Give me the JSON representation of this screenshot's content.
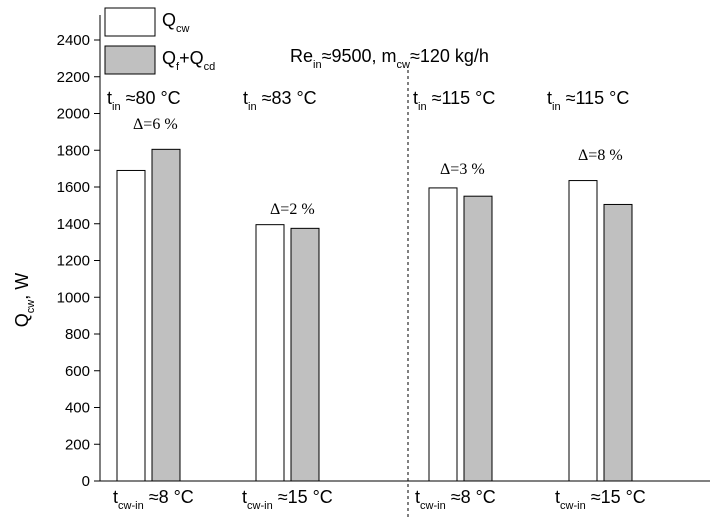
{
  "chart_data": {
    "type": "bar",
    "annotation": [
      "Re",
      "in",
      "≈9500, m",
      "cw",
      "≈120 kg/h"
    ],
    "y_label": [
      "Q",
      "cw",
      ", W"
    ],
    "categories": [
      [
        "t",
        "cw-in",
        " ≈8 °C"
      ],
      [
        "t",
        "cw-in",
        " ≈15 °C"
      ],
      [
        "t",
        "cw-in",
        " ≈8 °C"
      ],
      [
        "t",
        "cw-in",
        " ≈15 °C"
      ]
    ],
    "top_labels": [
      [
        "t",
        "in",
        " ≈80 °C"
      ],
      [
        "t",
        "in",
        " ≈83 °C"
      ],
      [
        "t",
        "in",
        " ≈115 °C"
      ],
      [
        "t",
        "in",
        " ≈115 °C"
      ]
    ],
    "deltas": [
      "Δ=6 %",
      "Δ=2 %",
      "Δ=3 %",
      "Δ=8 %"
    ],
    "series": [
      {
        "name": [
          "Q",
          "cw"
        ],
        "color": "#ffffff",
        "values": [
          1690,
          1395,
          1595,
          1635
        ]
      },
      {
        "name": [
          "Q",
          "f",
          "+Q",
          "cd"
        ],
        "color": "#c0c0c0",
        "values": [
          1805,
          1375,
          1550,
          1505
        ]
      }
    ],
    "ylim": [
      0,
      2400
    ],
    "yticks": [
      0,
      200,
      400,
      600,
      800,
      1000,
      1200,
      1400,
      1600,
      1800,
      2000,
      2200,
      2400
    ]
  }
}
